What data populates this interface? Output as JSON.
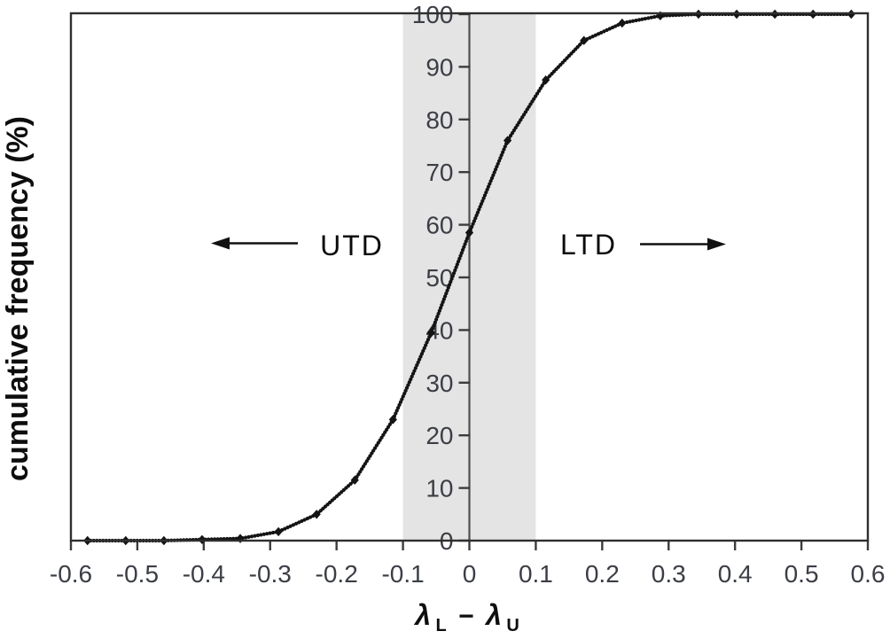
{
  "figure": {
    "background": "#ffffff"
  },
  "chart_data": {
    "type": "line",
    "title": "",
    "ylabel": "cumulative frequency (%)",
    "xlabel": {
      "lambda1": "λ",
      "sub1": "L",
      "minus": "−",
      "lambda2": "λ",
      "sub2": "U"
    },
    "xlim": [
      -0.6,
      0.6
    ],
    "ylim": [
      0,
      100
    ],
    "grid": false,
    "legend_position": "none",
    "x_tick_values": [
      -0.6,
      -0.5,
      -0.4,
      -0.3,
      -0.2,
      -0.1,
      0,
      0.1,
      0.2,
      0.3,
      0.4,
      0.5,
      0.6
    ],
    "x_tick_labels": [
      "-0.6",
      "-0.5",
      "-0.4",
      "-0.3",
      "-0.2",
      "-0.1",
      "0",
      "0.1",
      "0.2",
      "0.3",
      "0.4",
      "0.5",
      "0.6"
    ],
    "y_tick_values": [
      0,
      10,
      20,
      30,
      40,
      50,
      60,
      70,
      80,
      90,
      100
    ],
    "y_tick_labels": [
      "0",
      "10",
      "20",
      "30",
      "40",
      "50",
      "60",
      "70",
      "80",
      "90",
      "100"
    ],
    "shaded_band": {
      "from": -0.1,
      "to": 0.1
    },
    "zero_line_x": 0,
    "series": [
      {
        "name": "cumulative frequency",
        "marker": "diamond",
        "x": [
          -0.575,
          -0.5175,
          -0.46,
          -0.4025,
          -0.345,
          -0.2875,
          -0.23,
          -0.1725,
          -0.115,
          -0.0575,
          0,
          0.0575,
          0.115,
          0.1725,
          0.23,
          0.2875,
          0.345,
          0.4025,
          0.46,
          0.5175,
          0.575
        ],
        "y": [
          0,
          0,
          0,
          0.2,
          0.4,
          1.7,
          5,
          11.5,
          23,
          39.5,
          58.5,
          76,
          87.5,
          95,
          98.3,
          99.7,
          100,
          100,
          100,
          100,
          100
        ]
      }
    ],
    "annotations": [
      {
        "text": "UTD",
        "arrow_direction": "left"
      },
      {
        "text": "LTD",
        "arrow_direction": "right"
      }
    ]
  },
  "colors": {
    "curve": "#141414",
    "band": "#e4e4e4",
    "frame": "#2f2f2f",
    "zero_line": "#4f4f4f",
    "tick": "#3c3c3c",
    "tick_text": "#3b3e45",
    "title_text": "#0e0e0e"
  }
}
